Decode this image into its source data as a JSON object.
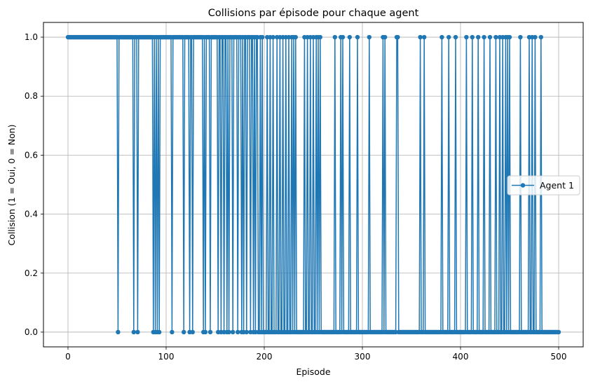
{
  "chart_data": {
    "type": "line",
    "title": "Collisions par épisode pour chaque agent",
    "xlabel": "Episode",
    "ylabel": "Collision (1 = Oui, 0 = Non)",
    "xlim": [
      -25,
      525
    ],
    "ylim": [
      -0.05,
      1.05
    ],
    "xticks": [
      0,
      100,
      200,
      300,
      400,
      500
    ],
    "yticks": [
      0.0,
      0.2,
      0.4,
      0.6,
      0.8,
      1.0
    ],
    "xtick_labels": [
      "0",
      "100",
      "200",
      "300",
      "400",
      "500"
    ],
    "ytick_labels": [
      "0.0",
      "0.2",
      "0.4",
      "0.6",
      "0.8",
      "1.0"
    ],
    "grid": true,
    "legend_position": "center-right",
    "series": [
      {
        "name": "Agent 1",
        "color": "#1f77b4",
        "marker": "circle",
        "zero_episodes": [
          51,
          67,
          71,
          87,
          89,
          91,
          93,
          106,
          118,
          124,
          127,
          138,
          140,
          145,
          153,
          156,
          159,
          162,
          164,
          168,
          173,
          177,
          179,
          182,
          186,
          189,
          191
        ],
        "one_after": [
          193,
          196,
          198,
          203,
          206,
          209,
          213,
          216,
          219,
          222,
          225,
          228,
          230,
          232,
          241,
          244,
          247,
          250,
          253,
          255,
          257,
          272,
          278,
          280,
          287,
          295,
          307,
          321,
          323,
          335,
          336,
          359,
          363,
          381,
          388,
          395,
          406,
          412,
          418,
          424,
          430,
          436,
          440,
          443,
          446,
          448,
          450,
          461,
          470,
          473,
          476,
          482
        ],
        "episode_count": 501
      }
    ]
  }
}
